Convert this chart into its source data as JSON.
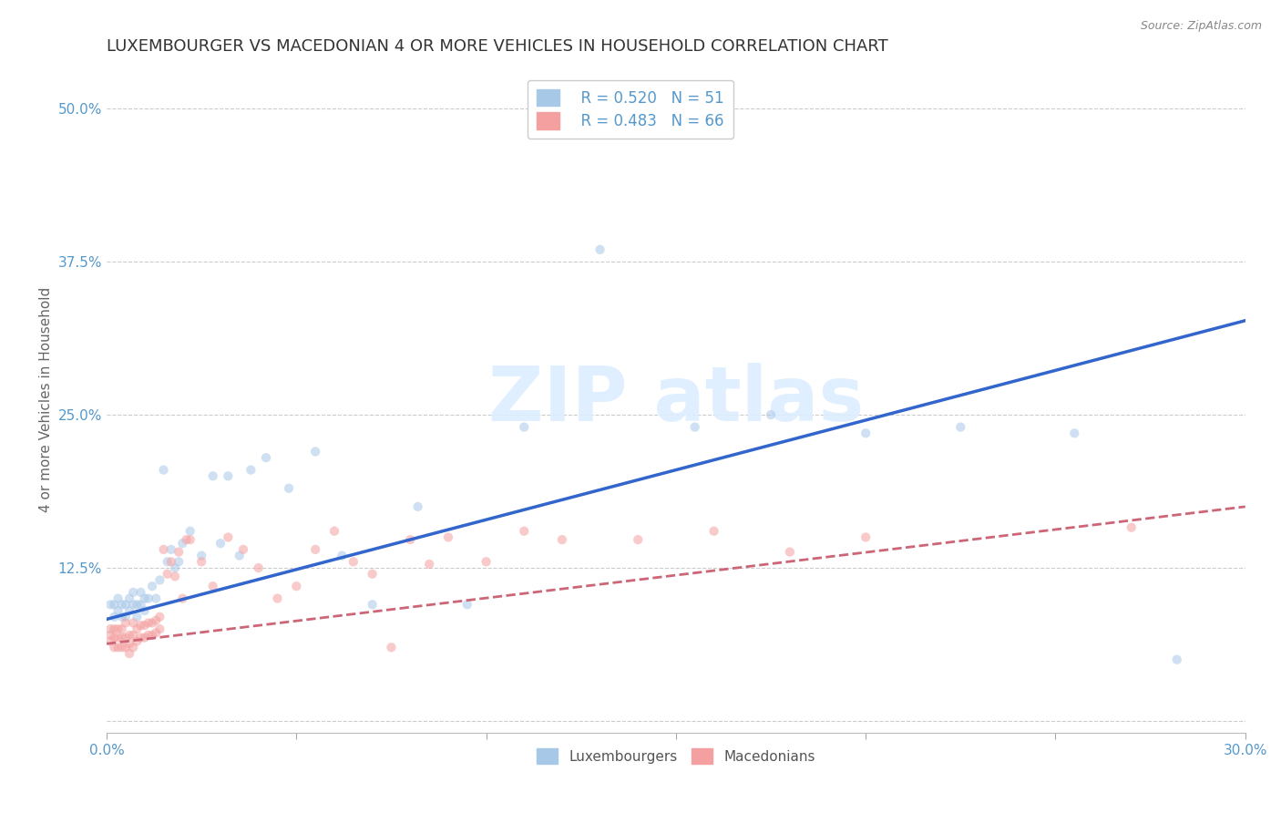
{
  "title": "LUXEMBOURGER VS MACEDONIAN 4 OR MORE VEHICLES IN HOUSEHOLD CORRELATION CHART",
  "source_text": "Source: ZipAtlas.com",
  "xlabel": "",
  "ylabel": "4 or more Vehicles in Household",
  "xlim": [
    0.0,
    0.3
  ],
  "ylim": [
    -0.01,
    0.535
  ],
  "xticks": [
    0.0,
    0.05,
    0.1,
    0.15,
    0.2,
    0.25,
    0.3
  ],
  "xticklabels": [
    "0.0%",
    "",
    "",
    "",
    "",
    "",
    "30.0%"
  ],
  "yticks": [
    0.0,
    0.125,
    0.25,
    0.375,
    0.5
  ],
  "yticklabels": [
    "",
    "12.5%",
    "25.0%",
    "37.5%",
    "50.0%"
  ],
  "legend_r1": "R = 0.520",
  "legend_n1": "N = 51",
  "legend_r2": "R = 0.483",
  "legend_n2": "N = 66",
  "blue_color": "#a8c8e8",
  "pink_color": "#f4a0a0",
  "blue_line_color": "#3366cc",
  "pink_line_color": "#cc6677",
  "axis_color": "#5599cc",
  "grid_color": "#cccccc",
  "watermark_color": "#ddeeff",
  "blue_scatter_x": [
    0.001,
    0.002,
    0.002,
    0.003,
    0.003,
    0.004,
    0.004,
    0.005,
    0.005,
    0.006,
    0.006,
    0.007,
    0.007,
    0.008,
    0.008,
    0.009,
    0.009,
    0.01,
    0.01,
    0.011,
    0.012,
    0.013,
    0.014,
    0.015,
    0.016,
    0.017,
    0.018,
    0.019,
    0.02,
    0.022,
    0.025,
    0.028,
    0.03,
    0.032,
    0.035,
    0.038,
    0.042,
    0.048,
    0.055,
    0.062,
    0.07,
    0.082,
    0.095,
    0.11,
    0.13,
    0.155,
    0.175,
    0.2,
    0.225,
    0.255,
    0.282
  ],
  "blue_scatter_y": [
    0.095,
    0.085,
    0.095,
    0.09,
    0.1,
    0.085,
    0.095,
    0.085,
    0.095,
    0.09,
    0.1,
    0.095,
    0.105,
    0.085,
    0.095,
    0.095,
    0.105,
    0.09,
    0.1,
    0.1,
    0.11,
    0.1,
    0.115,
    0.205,
    0.13,
    0.14,
    0.125,
    0.13,
    0.145,
    0.155,
    0.135,
    0.2,
    0.145,
    0.2,
    0.135,
    0.205,
    0.215,
    0.19,
    0.22,
    0.135,
    0.095,
    0.175,
    0.095,
    0.24,
    0.385,
    0.24,
    0.25,
    0.235,
    0.24,
    0.235,
    0.05
  ],
  "pink_scatter_x": [
    0.001,
    0.001,
    0.001,
    0.002,
    0.002,
    0.002,
    0.003,
    0.003,
    0.003,
    0.004,
    0.004,
    0.004,
    0.005,
    0.005,
    0.005,
    0.006,
    0.006,
    0.006,
    0.007,
    0.007,
    0.007,
    0.008,
    0.008,
    0.009,
    0.009,
    0.01,
    0.01,
    0.011,
    0.011,
    0.012,
    0.012,
    0.013,
    0.013,
    0.014,
    0.014,
    0.015,
    0.016,
    0.017,
    0.018,
    0.019,
    0.02,
    0.021,
    0.022,
    0.025,
    0.028,
    0.032,
    0.036,
    0.04,
    0.045,
    0.05,
    0.055,
    0.06,
    0.065,
    0.07,
    0.075,
    0.08,
    0.085,
    0.09,
    0.1,
    0.11,
    0.12,
    0.14,
    0.16,
    0.18,
    0.2,
    0.27
  ],
  "pink_scatter_y": [
    0.065,
    0.07,
    0.075,
    0.06,
    0.068,
    0.075,
    0.06,
    0.068,
    0.075,
    0.06,
    0.068,
    0.075,
    0.06,
    0.068,
    0.08,
    0.055,
    0.063,
    0.07,
    0.06,
    0.07,
    0.08,
    0.065,
    0.075,
    0.068,
    0.078,
    0.068,
    0.078,
    0.07,
    0.08,
    0.07,
    0.08,
    0.072,
    0.082,
    0.075,
    0.085,
    0.14,
    0.12,
    0.13,
    0.118,
    0.138,
    0.1,
    0.148,
    0.148,
    0.13,
    0.11,
    0.15,
    0.14,
    0.125,
    0.1,
    0.11,
    0.14,
    0.155,
    0.13,
    0.12,
    0.06,
    0.148,
    0.128,
    0.15,
    0.13,
    0.155,
    0.148,
    0.148,
    0.155,
    0.138,
    0.15,
    0.158
  ],
  "blue_line_x0": 0.0,
  "blue_line_x1": 0.3,
  "blue_line_y0": 0.083,
  "blue_line_y1": 0.327,
  "pink_line_x0": 0.0,
  "pink_line_x1": 0.3,
  "pink_line_y0": 0.063,
  "pink_line_y1": 0.175,
  "title_fontsize": 13,
  "label_fontsize": 11,
  "tick_fontsize": 11,
  "scatter_alpha": 0.55,
  "scatter_size": 55
}
